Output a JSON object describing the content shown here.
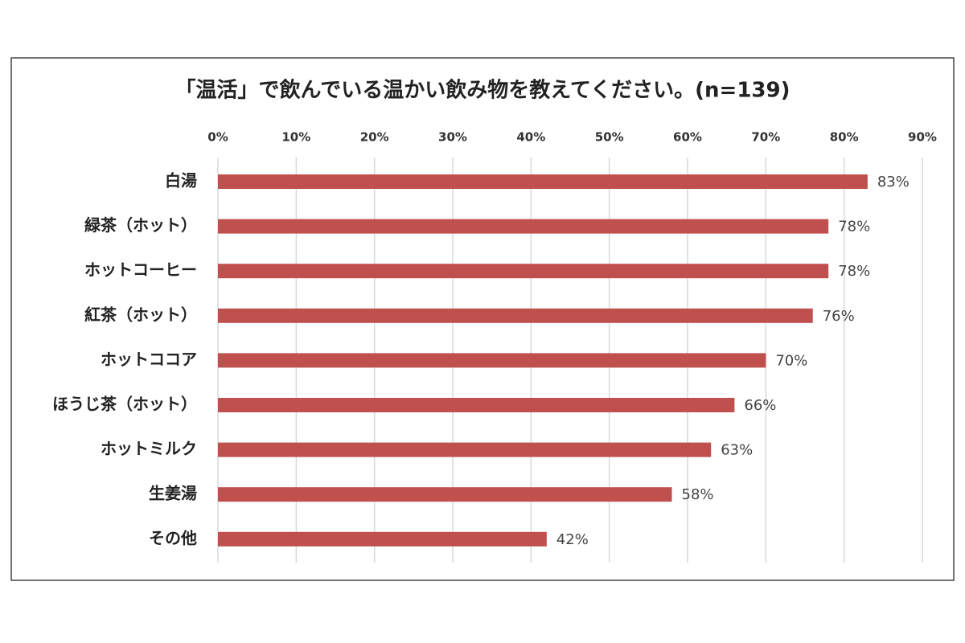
{
  "chart_data": {
    "type": "bar",
    "orientation": "horizontal",
    "title": "「温活」で飲んでいる温かい飲み物を教えてください。(n=139)",
    "categories": [
      "白湯",
      "緑茶（ホット）",
      "ホットコーヒー",
      "紅茶（ホット）",
      "ホットココア",
      "ほうじ茶（ホット）",
      "ホットミルク",
      "生姜湯",
      "その他"
    ],
    "values": [
      83,
      78,
      78,
      76,
      70,
      66,
      63,
      58,
      42
    ],
    "value_labels": [
      "83%",
      "78%",
      "78%",
      "76%",
      "70%",
      "66%",
      "63%",
      "58%",
      "42%"
    ],
    "color": "#c0504d",
    "xlim": [
      0,
      90
    ],
    "xticks": [
      {
        "value": 0,
        "label": "0%"
      },
      {
        "value": 10,
        "label": "10%"
      },
      {
        "value": 20,
        "label": "20%"
      },
      {
        "value": 30,
        "label": "30%"
      },
      {
        "value": 40,
        "label": "40%"
      },
      {
        "value": 50,
        "label": "50%"
      },
      {
        "value": 60,
        "label": "60%"
      },
      {
        "value": 70,
        "label": "70%"
      },
      {
        "value": 80,
        "label": "80%"
      },
      {
        "value": 90,
        "label": "90%"
      }
    ],
    "grid": true
  }
}
